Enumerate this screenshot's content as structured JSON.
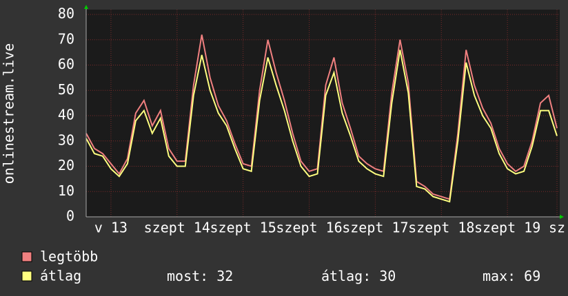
{
  "chart_data": {
    "type": "line",
    "y_label": "onlinestream.live",
    "x": [
      0,
      3,
      6,
      9,
      12,
      15,
      18,
      21,
      24,
      27,
      30,
      33,
      36,
      39,
      42,
      45,
      48,
      51,
      54,
      57,
      60,
      63,
      66,
      69,
      72,
      75,
      78,
      81,
      84,
      87,
      90,
      93,
      96,
      99,
      102,
      105,
      108,
      111,
      114,
      117,
      120,
      123,
      126,
      129,
      132,
      135,
      138,
      141,
      144,
      147,
      150,
      153,
      156,
      159,
      162,
      165,
      168,
      171
    ],
    "series": [
      {
        "name": "legtöbb",
        "color": "#f08080",
        "values": [
          33,
          27,
          25,
          21,
          17,
          23,
          41,
          46,
          36,
          42,
          27,
          22,
          22,
          52,
          72,
          55,
          44,
          38,
          29,
          21,
          20,
          50,
          70,
          57,
          46,
          33,
          22,
          18,
          19,
          52,
          63,
          45,
          35,
          24,
          21,
          19,
          18,
          49,
          70,
          53,
          14,
          12,
          9,
          8,
          7,
          33,
          66,
          52,
          43,
          37,
          27,
          21,
          18,
          20,
          30,
          45,
          48,
          35
        ]
      },
      {
        "name": "átlag",
        "color": "#ffff80",
        "values": [
          31,
          25,
          24,
          19,
          16,
          21,
          38,
          42,
          33,
          39,
          24,
          20,
          20,
          48,
          64,
          50,
          41,
          36,
          27,
          19,
          18,
          46,
          63,
          52,
          42,
          30,
          20,
          16,
          17,
          48,
          57,
          41,
          32,
          22,
          19,
          17,
          16,
          45,
          66,
          49,
          12,
          11,
          8,
          7,
          6,
          30,
          61,
          48,
          40,
          35,
          25,
          19,
          17,
          18,
          28,
          42,
          42,
          32
        ]
      }
    ],
    "xlim": [
      0,
      172
    ],
    "xticks": [
      {
        "value": 9,
        "label": "v 13"
      },
      {
        "value": 33,
        "label": "szept 14"
      },
      {
        "value": 57,
        "label": "szept 15"
      },
      {
        "value": 81,
        "label": "szept 16"
      },
      {
        "value": 105,
        "label": "szept 17"
      },
      {
        "value": 129,
        "label": "szept 18"
      },
      {
        "value": 153,
        "label": "szept 19"
      },
      {
        "value": 171,
        "label": "sz"
      }
    ],
    "ylim": [
      0,
      80
    ],
    "yticks": [
      0,
      10,
      20,
      30,
      40,
      50,
      60,
      70,
      80
    ],
    "grid": true,
    "stats": [
      {
        "label": "most:",
        "value": 32
      },
      {
        "label": "átlag:",
        "value": 30
      },
      {
        "label": "max:",
        "value": 69
      }
    ]
  }
}
